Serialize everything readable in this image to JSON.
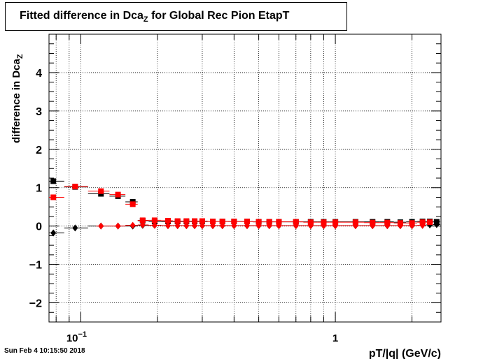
{
  "title": {
    "main": "Fitted difference in Dca",
    "subscript": "Z",
    "suffix": " for Global Rec Pion EtapT"
  },
  "timestamp": "Sun Feb  4 10:15:50 2018",
  "chart_data": {
    "type": "scatter",
    "xscale": "log",
    "xlim": [
      0.075,
      2.6
    ],
    "ylim": [
      -2.5,
      5.0
    ],
    "grid": true,
    "xlabel": "pT/|q| (GeV/c)",
    "ylabel": "difference in Dca",
    "ylabel_sub": "Z",
    "x_tick_labels": [
      {
        "value": 0.1,
        "base": "10",
        "exp": "−1"
      },
      {
        "value": 1,
        "base": "1",
        "exp": ""
      }
    ],
    "y_ticks": [
      -2,
      -1,
      0,
      1,
      2,
      3,
      4
    ],
    "y_tick_labels": [
      "−2",
      "−1",
      "0",
      "1",
      "2",
      "3",
      "4"
    ],
    "series": [
      {
        "color": "#000000",
        "marker": "square",
        "points": [
          [
            0.078,
            1.17
          ],
          [
            0.095,
            1.02
          ],
          [
            0.12,
            0.84
          ],
          [
            0.14,
            0.78
          ],
          [
            0.16,
            0.63
          ],
          [
            0.175,
            0.14
          ],
          [
            0.195,
            0.12
          ],
          [
            0.22,
            0.12
          ],
          [
            0.24,
            0.12
          ],
          [
            0.26,
            0.12
          ],
          [
            0.28,
            0.12
          ],
          [
            0.3,
            0.12
          ],
          [
            0.33,
            0.12
          ],
          [
            0.36,
            0.12
          ],
          [
            0.4,
            0.12
          ],
          [
            0.45,
            0.12
          ],
          [
            0.5,
            0.11
          ],
          [
            0.55,
            0.11
          ],
          [
            0.6,
            0.11
          ],
          [
            0.7,
            0.11
          ],
          [
            0.8,
            0.11
          ],
          [
            0.9,
            0.11
          ],
          [
            1.0,
            0.11
          ],
          [
            1.2,
            0.11
          ],
          [
            1.4,
            0.11
          ],
          [
            1.6,
            0.11
          ],
          [
            1.8,
            0.1
          ],
          [
            2.0,
            0.11
          ],
          [
            2.2,
            0.12
          ],
          [
            2.35,
            0.12
          ],
          [
            2.5,
            0.11
          ]
        ]
      },
      {
        "color": "#000000",
        "marker": "diamond",
        "points": [
          [
            0.078,
            -0.18
          ],
          [
            0.095,
            -0.05
          ],
          [
            0.12,
            0.0
          ],
          [
            0.14,
            0.0
          ],
          [
            0.16,
            0.0
          ],
          [
            0.175,
            0.02
          ],
          [
            0.195,
            0.02
          ],
          [
            0.22,
            0.01
          ],
          [
            0.24,
            0.01
          ],
          [
            0.26,
            0.01
          ],
          [
            0.28,
            0.01
          ],
          [
            0.3,
            0.01
          ],
          [
            0.33,
            0.01
          ],
          [
            0.36,
            0.01
          ],
          [
            0.4,
            0.01
          ],
          [
            0.45,
            0.01
          ],
          [
            0.5,
            0.01
          ],
          [
            0.55,
            0.01
          ],
          [
            0.6,
            0.01
          ],
          [
            0.7,
            0.01
          ],
          [
            0.8,
            0.01
          ],
          [
            0.9,
            0.01
          ],
          [
            1.0,
            0.01
          ],
          [
            1.2,
            0.01
          ],
          [
            1.4,
            0.01
          ],
          [
            1.6,
            0.01
          ],
          [
            1.8,
            0.01
          ],
          [
            2.0,
            0.01
          ],
          [
            2.2,
            0.02
          ],
          [
            2.35,
            0.03
          ],
          [
            2.5,
            0.04
          ]
        ]
      },
      {
        "color": "#ff0000",
        "marker": "square",
        "points": [
          [
            0.078,
            0.75
          ],
          [
            0.095,
            1.03
          ],
          [
            0.12,
            0.91
          ],
          [
            0.14,
            0.82
          ],
          [
            0.16,
            0.57
          ],
          [
            0.175,
            0.15
          ],
          [
            0.195,
            0.15
          ],
          [
            0.22,
            0.14
          ],
          [
            0.24,
            0.13
          ],
          [
            0.26,
            0.13
          ],
          [
            0.28,
            0.13
          ],
          [
            0.3,
            0.13
          ],
          [
            0.33,
            0.12
          ],
          [
            0.36,
            0.12
          ],
          [
            0.4,
            0.12
          ],
          [
            0.45,
            0.12
          ],
          [
            0.5,
            0.11
          ],
          [
            0.55,
            0.11
          ],
          [
            0.6,
            0.11
          ],
          [
            0.7,
            0.11
          ],
          [
            0.8,
            0.1
          ],
          [
            0.9,
            0.1
          ],
          [
            1.0,
            0.1
          ],
          [
            1.2,
            0.1
          ],
          [
            1.4,
            0.09
          ],
          [
            1.6,
            0.09
          ],
          [
            1.8,
            0.08
          ],
          [
            2.0,
            0.08
          ],
          [
            2.2,
            0.1
          ],
          [
            2.35,
            0.1
          ]
        ]
      },
      {
        "color": "#ff0000",
        "marker": "diamond",
        "points": [
          [
            0.12,
            0.0
          ],
          [
            0.14,
            0.0
          ],
          [
            0.16,
            0.02
          ],
          [
            0.175,
            0.03
          ],
          [
            0.195,
            0.02
          ],
          [
            0.22,
            0.01
          ],
          [
            0.24,
            0.01
          ],
          [
            0.26,
            0.01
          ],
          [
            0.28,
            0.01
          ],
          [
            0.3,
            0.01
          ],
          [
            0.33,
            0.01
          ],
          [
            0.36,
            0.01
          ],
          [
            0.4,
            0.01
          ],
          [
            0.45,
            0.01
          ],
          [
            0.5,
            0.01
          ],
          [
            0.55,
            0.01
          ],
          [
            0.6,
            0.01
          ],
          [
            0.7,
            0.01
          ],
          [
            0.8,
            0.01
          ],
          [
            0.9,
            0.01
          ],
          [
            1.0,
            0.01
          ],
          [
            1.2,
            0.01
          ],
          [
            1.4,
            0.01
          ],
          [
            1.6,
            0.01
          ],
          [
            1.8,
            0.01
          ],
          [
            2.0,
            0.01
          ],
          [
            2.2,
            0.02
          ]
        ]
      }
    ]
  }
}
